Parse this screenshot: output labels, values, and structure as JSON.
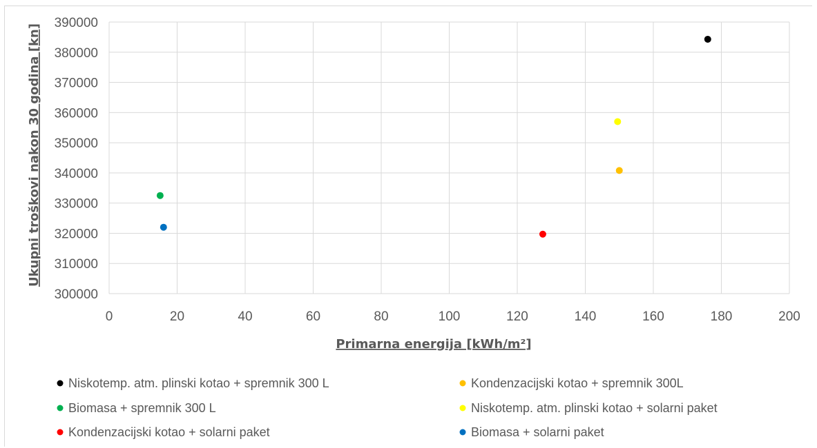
{
  "chart_data": {
    "type": "scatter",
    "title": "",
    "xlabel": "Primarna energija [kWh/m²]",
    "ylabel": "Ukupni troškovi nakon 30 godina [kn]",
    "xlim": [
      0,
      200
    ],
    "ylim": [
      300000,
      390000
    ],
    "x_ticks": [
      0,
      20,
      40,
      60,
      80,
      100,
      120,
      140,
      160,
      180,
      200
    ],
    "y_ticks": [
      300000,
      310000,
      320000,
      330000,
      340000,
      350000,
      360000,
      370000,
      380000,
      390000
    ],
    "grid": true,
    "legend_position": "bottom",
    "series": [
      {
        "name": "Niskotemp. atm. plinski kotao + spremnik 300 L",
        "color": "#000000",
        "x": [
          176
        ],
        "y": [
          384300
        ]
      },
      {
        "name": "Kondenzacijski kotao + spremnik 300L",
        "color": "#ffc000",
        "x": [
          150
        ],
        "y": [
          340800
        ]
      },
      {
        "name": "Biomasa + spremnik 300 L",
        "color": "#00b050",
        "x": [
          15
        ],
        "y": [
          332500
        ]
      },
      {
        "name": "Niskotemp. atm. plinski kotao + solarni paket",
        "color": "#ffff00",
        "x": [
          149.5
        ],
        "y": [
          357000
        ]
      },
      {
        "name": "Kondenzacijski kotao + solarni paket",
        "color": "#ff0000",
        "x": [
          127.5
        ],
        "y": [
          319700
        ]
      },
      {
        "name": "Biomasa + solarni paket",
        "color": "#0070c0",
        "x": [
          16
        ],
        "y": [
          322000
        ]
      }
    ]
  }
}
